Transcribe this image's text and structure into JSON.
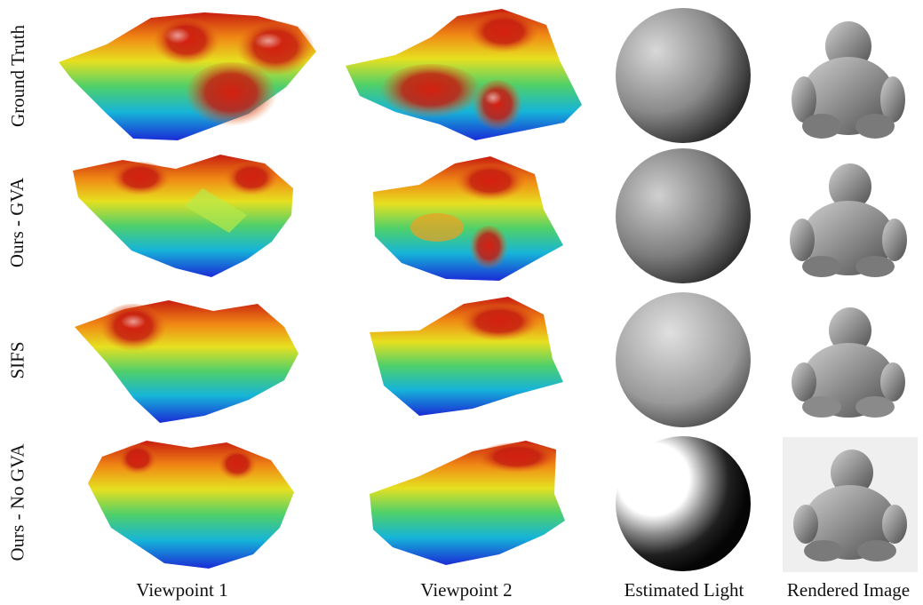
{
  "rows": [
    {
      "label": "Ground Truth"
    },
    {
      "label": "Ours - GVA"
    },
    {
      "label": "SIFS"
    },
    {
      "label": "Ours - No GVA"
    }
  ],
  "columns": [
    {
      "label": "Viewpoint 1"
    },
    {
      "label": "Viewpoint 2"
    },
    {
      "label": "Estimated Light"
    },
    {
      "label": "Rendered Image"
    }
  ]
}
